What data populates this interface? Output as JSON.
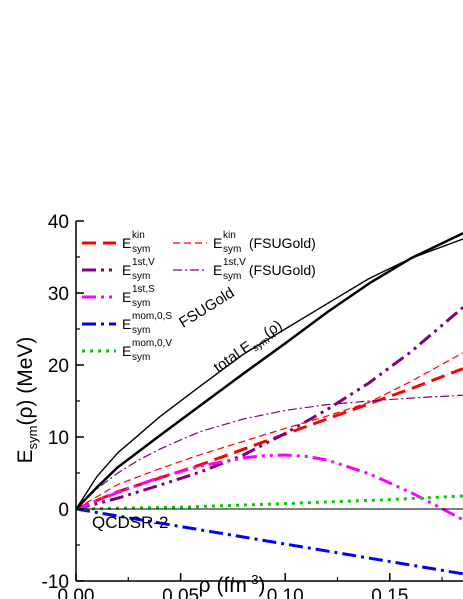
{
  "chart_data": {
    "type": "line",
    "xlabel_symbol": "ρ",
    "xlabel_unit": "(fm",
    "xlabel_exp": "-3",
    "xlabel_close": ")",
    "ylabel_main": "E",
    "ylabel_sub": "sym",
    "ylabel_rest": "(ρ) (MeV)",
    "xlim": [
      0.0,
      0.185
    ],
    "ylim": [
      -10,
      40
    ],
    "x_ticks": [
      "0.00",
      "0.05",
      "0.10",
      "0.15"
    ],
    "x_tick_values": [
      0.0,
      0.05,
      0.1,
      0.15
    ],
    "y_ticks": [
      "-10",
      "0",
      "10",
      "20",
      "30",
      "40"
    ],
    "y_tick_values": [
      -10,
      0,
      10,
      20,
      30,
      40
    ],
    "grid": false,
    "zero_line": true,
    "legend_position": "top-left",
    "annotations": [
      {
        "text": "FSUGold",
        "id": "fsugold-label"
      },
      {
        "text": "total E",
        "sub": "sym",
        "rest": "(ρ)",
        "id": "total-label"
      },
      {
        "text": "QCDSR-2",
        "id": "model-label"
      }
    ],
    "series": [
      {
        "label_main": "E",
        "sup": "kin",
        "sub": "sym",
        "suffix": "",
        "color": "#ff0000",
        "style": "dash-thick",
        "x": [
          0,
          0.02,
          0.04,
          0.06,
          0.08,
          0.1,
          0.12,
          0.14,
          0.16,
          0.185
        ],
        "y": [
          0,
          2.4,
          4.3,
          6.2,
          8.3,
          10.4,
          12.5,
          14.6,
          16.7,
          19.5
        ]
      },
      {
        "label_main": "E",
        "sup": "1st,V",
        "sub": "sym",
        "suffix": "",
        "color": "#800080",
        "style": "dashdotdot-thick",
        "x": [
          0,
          0.02,
          0.04,
          0.06,
          0.08,
          0.1,
          0.12,
          0.14,
          0.16,
          0.185
        ],
        "y": [
          0,
          1.5,
          3.3,
          5.2,
          7.5,
          10.5,
          13.8,
          17.5,
          21.8,
          28.0
        ]
      },
      {
        "label_main": "E",
        "sup": "1st,S",
        "sub": "sym",
        "suffix": "",
        "color": "#ff00ff",
        "style": "dashdotdot-thick",
        "x": [
          0,
          0.02,
          0.04,
          0.06,
          0.08,
          0.09,
          0.1,
          0.11,
          0.12,
          0.14,
          0.16,
          0.17,
          0.185
        ],
        "y": [
          0,
          2.3,
          4.4,
          6.0,
          7.1,
          7.4,
          7.5,
          7.3,
          6.8,
          4.9,
          2.3,
          0.8,
          -1.5
        ]
      },
      {
        "label_main": "E",
        "sup": "mom,0,S",
        "sub": "sym",
        "suffix": "",
        "color": "#0000ff",
        "style": "dashdot-thick",
        "x": [
          0,
          0.185
        ],
        "y": [
          0,
          -9.0
        ]
      },
      {
        "label_main": "E",
        "sup": "mom,0,V",
        "sub": "sym",
        "suffix": "",
        "color": "#00cc00",
        "style": "dot-thick",
        "x": [
          0,
          0.05,
          0.1,
          0.15,
          0.185
        ],
        "y": [
          0,
          0.25,
          0.75,
          1.3,
          1.8
        ]
      },
      {
        "label_main": "E",
        "sup": "kin",
        "sub": "sym",
        "suffix": " (FSUGold)",
        "color": "#ff0000",
        "style": "dash-thin",
        "x": [
          0,
          0.02,
          0.04,
          0.06,
          0.08,
          0.1,
          0.12,
          0.14,
          0.16,
          0.185
        ],
        "y": [
          0,
          3.4,
          5.6,
          7.6,
          9.4,
          11.2,
          12.9,
          14.8,
          17.7,
          21.7
        ]
      },
      {
        "label_main": "E",
        "sup": "1st,V",
        "sub": "sym",
        "suffix": " (FSUGold)",
        "color": "#800080",
        "style": "dashdot-thin",
        "x": [
          0,
          0.01,
          0.02,
          0.03,
          0.04,
          0.05,
          0.06,
          0.08,
          0.1,
          0.12,
          0.14,
          0.16,
          0.185
        ],
        "y": [
          0,
          2.8,
          5.0,
          6.8,
          8.3,
          9.6,
          10.8,
          12.5,
          13.7,
          14.5,
          15.0,
          15.4,
          15.8
        ]
      },
      {
        "label_main": "total",
        "sup": "",
        "sub": "",
        "suffix": "",
        "color": "#000000",
        "style": "solid-thick",
        "x": [
          0,
          0.01,
          0.02,
          0.04,
          0.06,
          0.08,
          0.1,
          0.12,
          0.14,
          0.16,
          0.185
        ],
        "y": [
          0,
          3.0,
          5.8,
          10.2,
          14.5,
          18.8,
          23.0,
          27.3,
          31.3,
          34.8,
          38.3
        ]
      },
      {
        "label_main": "FSUGold",
        "sup": "",
        "sub": "",
        "suffix": "",
        "color": "#000000",
        "style": "solid-thin",
        "x": [
          0,
          0.01,
          0.02,
          0.04,
          0.06,
          0.08,
          0.1,
          0.12,
          0.14,
          0.16,
          0.185
        ],
        "y": [
          0,
          4.5,
          7.8,
          12.8,
          17.2,
          21.5,
          25.0,
          28.5,
          32.0,
          34.8,
          37.5
        ]
      }
    ]
  }
}
